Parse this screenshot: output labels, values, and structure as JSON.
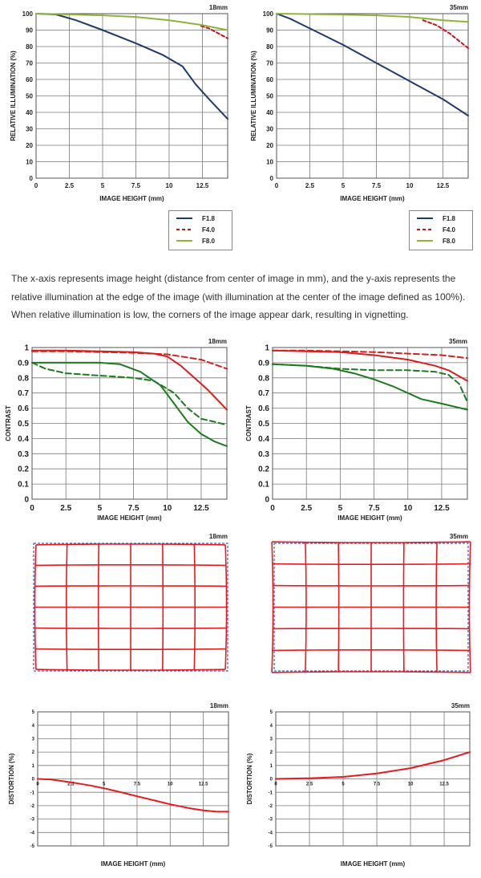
{
  "colors": {
    "f18": "#1f3a6b",
    "f40": "#c4161c",
    "f80": "#8fb33a",
    "contrast": "#d62020",
    "green": "#1e7a1e",
    "grid": "#7a7a7a",
    "distortion": "#e8191f",
    "dist_blue": "#3b5fc8"
  },
  "illumination": {
    "caption": "The x-axis represents image height (distance from center of image in mm), and the y-axis represents the relative illumination at the edge of the image (with illumination at the center of the image defined as 100%). When relative illumination is low, the corners of the image appear dark, resulting in vignetting.",
    "legend": [
      {
        "label": "F1.8",
        "color": "#1f3a6b"
      },
      {
        "label": "F4.0",
        "color": "#c4161c"
      },
      {
        "label": "F8.0",
        "color": "#8fb33a"
      }
    ]
  },
  "chart_data": [
    {
      "type": "line",
      "id": "illum18",
      "title": "18mm",
      "xlabel": "IMAGE HEIGHT (mm)",
      "ylabel": "RELATIVE ILLUMINATION (%)",
      "xlim": [
        0,
        14.4
      ],
      "ylim": [
        0,
        100
      ],
      "xticks": [
        0,
        2.5,
        5,
        7.5,
        10,
        12.5
      ],
      "xtick_labels": [
        "0",
        "2.5",
        "5",
        "7.5",
        "10",
        "12.5"
      ],
      "yticks": [
        0,
        10,
        20,
        30,
        40,
        50,
        60,
        70,
        80,
        90,
        100
      ],
      "ytick_labels": [
        "0",
        "10",
        "20",
        "30",
        "40",
        "50",
        "60",
        "70",
        "80",
        "90",
        "100"
      ],
      "series": [
        {
          "name": "F1.8",
          "color": "#1f3a6b",
          "dash": "",
          "x": [
            0,
            1.5,
            3,
            5,
            7.5,
            9.5,
            11,
            12,
            13,
            14.4
          ],
          "y": [
            100,
            99.5,
            96,
            90,
            82,
            75,
            68,
            57,
            48,
            36
          ]
        },
        {
          "name": "F4.0",
          "color": "#c4161c",
          "dash": "4,3",
          "x": [
            12.4,
            13,
            14.4
          ],
          "y": [
            92.5,
            91,
            85
          ]
        },
        {
          "name": "F8.0",
          "color": "#8fb33a",
          "dash": "",
          "x": [
            0,
            2.5,
            5,
            7.5,
            10,
            12.5,
            14.4
          ],
          "y": [
            100,
            99.5,
            99,
            98,
            96,
            93,
            90
          ]
        }
      ]
    },
    {
      "type": "line",
      "id": "illum35",
      "title": "35mm",
      "xlabel": "IMAGE HEIGHT (mm)",
      "ylabel": "RELATIVE ILLUMINATION (%)",
      "xlim": [
        0,
        14.4
      ],
      "ylim": [
        0,
        100
      ],
      "xticks": [
        0,
        2.5,
        5,
        7.5,
        10,
        12.5
      ],
      "xtick_labels": [
        "0",
        "2.5",
        "5",
        "7.5",
        "10",
        "12.5"
      ],
      "yticks": [
        0,
        10,
        20,
        30,
        40,
        50,
        60,
        70,
        80,
        90,
        100
      ],
      "ytick_labels": [
        "0",
        "10",
        "20",
        "30",
        "40",
        "50",
        "60",
        "70",
        "80",
        "90",
        "100"
      ],
      "series": [
        {
          "name": "F1.8",
          "color": "#1f3a6b",
          "dash": "",
          "x": [
            0,
            1,
            2.5,
            5,
            7.5,
            10,
            12.5,
            14.4
          ],
          "y": [
            100,
            97,
            91,
            81,
            70,
            59,
            48,
            38
          ]
        },
        {
          "name": "F4.0",
          "color": "#c4161c",
          "dash": "4,3",
          "x": [
            11,
            12,
            13,
            14.4
          ],
          "y": [
            96,
            93,
            88,
            79
          ]
        },
        {
          "name": "F8.0",
          "color": "#8fb33a",
          "dash": "",
          "x": [
            0,
            2.5,
            5,
            7.5,
            10,
            12.5,
            14.4
          ],
          "y": [
            100,
            99.7,
            99.4,
            99,
            98,
            96,
            95
          ]
        }
      ]
    },
    {
      "type": "line",
      "id": "mtf18",
      "title": "18mm",
      "xlabel": "IMAGE HEIGHT (mm)",
      "ylabel": "CONTRAST",
      "xlim": [
        0,
        14.4
      ],
      "ylim": [
        0,
        1
      ],
      "xticks": [
        0,
        2.5,
        5,
        7.5,
        10,
        12.5
      ],
      "xtick_labels": [
        "0",
        "2.5",
        "5",
        "7.5",
        "10",
        "12.5"
      ],
      "yticks": [
        0,
        0.1,
        0.2,
        0.3,
        0.4,
        0.5,
        0.6,
        0.7,
        0.8,
        0.9,
        1
      ],
      "ytick_labels": [
        "0",
        "0.1",
        "0.2",
        "0.3",
        "0.4",
        "0.5",
        "0.6",
        "0.7",
        "0.8",
        "0.9",
        "1"
      ],
      "series": [
        {
          "color": "#d62020",
          "dash": "",
          "x": [
            0,
            2.5,
            5,
            7.5,
            9,
            10,
            11,
            12,
            13,
            14.4
          ],
          "y": [
            0.98,
            0.98,
            0.975,
            0.97,
            0.96,
            0.94,
            0.88,
            0.8,
            0.72,
            0.59
          ]
        },
        {
          "color": "#d62020",
          "dash": "7,4",
          "x": [
            0,
            2.5,
            5,
            7.5,
            10,
            12.5,
            14.4
          ],
          "y": [
            0.975,
            0.975,
            0.97,
            0.965,
            0.955,
            0.92,
            0.86
          ]
        },
        {
          "color": "#1e7a1e",
          "dash": "",
          "x": [
            0,
            1.5,
            3,
            5,
            6.5,
            8,
            9.5,
            10.5,
            11.5,
            12.5,
            13.5,
            14.4
          ],
          "y": [
            0.9,
            0.9,
            0.9,
            0.9,
            0.89,
            0.84,
            0.75,
            0.63,
            0.51,
            0.43,
            0.38,
            0.35
          ]
        },
        {
          "color": "#1e7a1e",
          "dash": "7,4",
          "x": [
            0,
            1,
            2.5,
            5,
            7.5,
            9,
            10.5,
            11.5,
            12.5,
            13.5,
            14.4
          ],
          "y": [
            0.9,
            0.86,
            0.83,
            0.815,
            0.8,
            0.78,
            0.7,
            0.6,
            0.53,
            0.51,
            0.49
          ]
        }
      ]
    },
    {
      "type": "line",
      "id": "mtf35",
      "title": "35mm",
      "xlabel": "IMAGE HEIGHT (mm)",
      "ylabel": "CONTRAST",
      "xlim": [
        0,
        14.4
      ],
      "ylim": [
        0,
        1
      ],
      "xticks": [
        0,
        2.5,
        5,
        7.5,
        10,
        12.5
      ],
      "xtick_labels": [
        "0",
        "2.5",
        "5",
        "7.5",
        "10",
        "12.5"
      ],
      "yticks": [
        0,
        0.1,
        0.2,
        0.3,
        0.4,
        0.5,
        0.6,
        0.7,
        0.8,
        0.9,
        1
      ],
      "ytick_labels": [
        "0",
        "0.1",
        "0.2",
        "0.3",
        "0.4",
        "0.5",
        "0.6",
        "0.7",
        "0.8",
        "0.9",
        "1"
      ],
      "series": [
        {
          "color": "#d62020",
          "dash": "",
          "x": [
            0,
            2.5,
            5,
            7.5,
            10,
            12,
            13,
            14.4
          ],
          "y": [
            0.98,
            0.975,
            0.97,
            0.95,
            0.92,
            0.88,
            0.85,
            0.78
          ]
        },
        {
          "color": "#d62020",
          "dash": "7,4",
          "x": [
            0,
            2.5,
            5,
            7.5,
            10,
            12.5,
            14.4
          ],
          "y": [
            0.98,
            0.98,
            0.975,
            0.97,
            0.96,
            0.95,
            0.93
          ]
        },
        {
          "color": "#1e7a1e",
          "dash": "",
          "x": [
            0,
            2.5,
            4.5,
            6,
            7.5,
            9,
            10,
            11,
            12.5,
            14.4
          ],
          "y": [
            0.89,
            0.88,
            0.86,
            0.83,
            0.79,
            0.74,
            0.7,
            0.66,
            0.63,
            0.59
          ]
        },
        {
          "color": "#1e7a1e",
          "dash": "7,4",
          "x": [
            0,
            2.5,
            5,
            7.5,
            10,
            12,
            13,
            13.8,
            14.4
          ],
          "y": [
            0.89,
            0.88,
            0.86,
            0.85,
            0.85,
            0.84,
            0.82,
            0.76,
            0.64
          ]
        }
      ]
    },
    {
      "type": "grid",
      "id": "grid18",
      "title": "18mm",
      "distortion": "barrel"
    },
    {
      "type": "grid",
      "id": "grid35",
      "title": "35mm",
      "distortion": "pincushion"
    },
    {
      "type": "line",
      "id": "dist18",
      "title": "18mm",
      "xlabel": "IMAGE HEIGHT (mm)",
      "ylabel": "DISTORTION (%)",
      "xlim": [
        0,
        14.4
      ],
      "ylim": [
        -5,
        5
      ],
      "xticks": [
        0,
        2.5,
        5,
        7.5,
        10,
        12.5
      ],
      "xtick_labels": [
        "0",
        "2.5",
        "5",
        "7.5",
        "10",
        "12.5"
      ],
      "yticks": [
        -5,
        -4,
        -3,
        -2,
        -1,
        0,
        1,
        2,
        3,
        4,
        5
      ],
      "ytick_labels": [
        "-5",
        "-4",
        "-3",
        "-2",
        "-1",
        "0",
        "1",
        "2",
        "3",
        "4",
        "5"
      ],
      "series": [
        {
          "color": "#e8191f",
          "dash": "",
          "x": [
            0,
            1,
            2.5,
            4,
            5,
            6.5,
            7.5,
            9,
            10,
            11.5,
            12.5,
            13.5,
            14.4
          ],
          "y": [
            0,
            -0.05,
            -0.25,
            -0.5,
            -0.7,
            -1.05,
            -1.3,
            -1.65,
            -1.9,
            -2.2,
            -2.35,
            -2.45,
            -2.45
          ]
        }
      ]
    },
    {
      "type": "line",
      "id": "dist35",
      "title": "35mm",
      "xlabel": "IMAGE HEIGHT (mm)",
      "ylabel": "DISTORTION (%)",
      "xlim": [
        0,
        14.4
      ],
      "ylim": [
        -5,
        5
      ],
      "xticks": [
        0,
        2.5,
        5,
        7.5,
        10,
        12.5
      ],
      "xtick_labels": [
        "0",
        "2.5",
        "5",
        "7.5",
        "10",
        "12.5"
      ],
      "yticks": [
        -5,
        -4,
        -3,
        -2,
        -1,
        0,
        1,
        2,
        3,
        4,
        5
      ],
      "ytick_labels": [
        "-5",
        "-4",
        "-3",
        "-2",
        "-1",
        "0",
        "1",
        "2",
        "3",
        "4",
        "5"
      ],
      "series": [
        {
          "color": "#e8191f",
          "dash": "",
          "x": [
            0,
            2.5,
            5,
            7.5,
            10,
            12.5,
            14.4
          ],
          "y": [
            0,
            0.05,
            0.15,
            0.4,
            0.8,
            1.4,
            2.0
          ]
        }
      ]
    }
  ]
}
